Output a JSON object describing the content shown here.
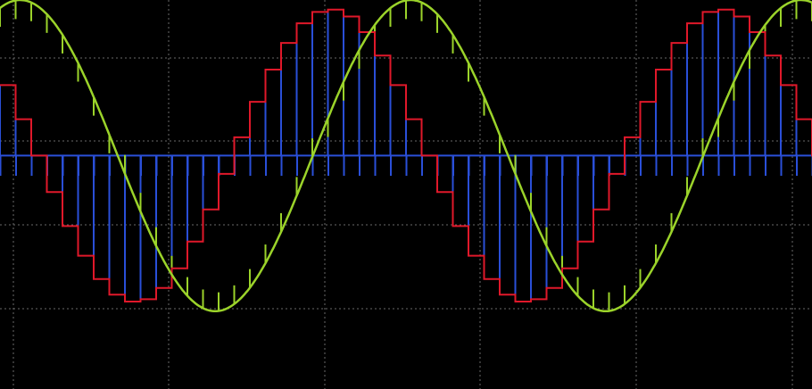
{
  "chart_data": {
    "type": "line",
    "title": "",
    "xlabel": "",
    "ylabel": "",
    "grid": true,
    "grid_divisions": {
      "x": 5,
      "y": 5
    },
    "xlim": [
      -0.2,
      5.0
    ],
    "ylim": [
      -1.5,
      1.0
    ],
    "series": [
      {
        "key": "pwm",
        "style": "pulse-train",
        "color": "#2a4fd8",
        "period": 0.1,
        "base": 0.0,
        "dip": -0.13,
        "envelope": "sampled"
      },
      {
        "key": "sampled",
        "style": "step",
        "color": "#e0182a",
        "amplitude": 0.94,
        "frequency": 0.4,
        "phase": 3.1416,
        "step": 0.1,
        "x_range": [
          -0.2,
          5.0
        ]
      },
      {
        "key": "reference",
        "style": "line",
        "color": "#9bd32a",
        "amplitude": 1.0,
        "frequency": 0.4,
        "phase": 1.75,
        "x_range": [
          -0.2,
          5.0
        ]
      },
      {
        "key": "reference-samples",
        "style": "stem",
        "color": "#9bd32a",
        "step": 0.1,
        "tick": 0.12,
        "source": "reference"
      }
    ]
  }
}
